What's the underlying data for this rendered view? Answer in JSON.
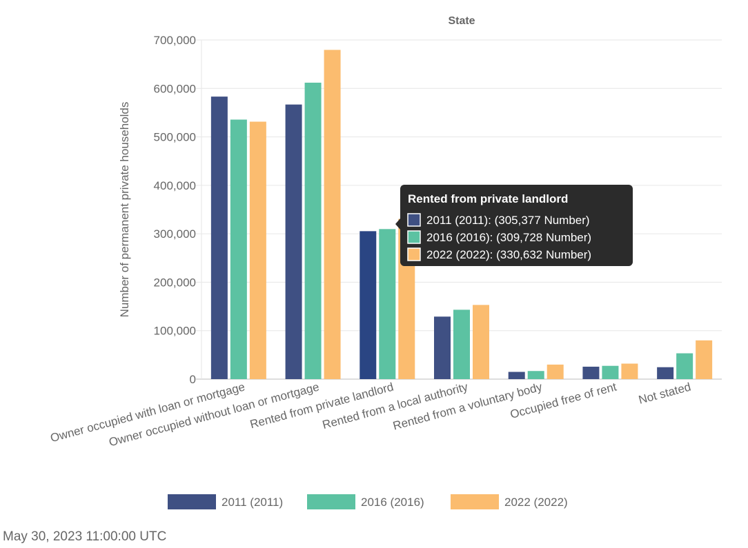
{
  "chart_data": {
    "type": "bar",
    "title": "State",
    "ylabel": "Number of permanent private households",
    "xlabel": "",
    "ylim": [
      0,
      700000
    ],
    "yticks": [
      0,
      100000,
      200000,
      300000,
      400000,
      500000,
      600000,
      700000
    ],
    "ytick_labels": [
      "0",
      "100,000",
      "200,000",
      "300,000",
      "400,000",
      "500,000",
      "600,000",
      "700,000"
    ],
    "grid": true,
    "legend_position": "bottom",
    "categories": [
      "Owner occupied with loan or mortgage",
      "Owner occupied without loan or mortgage",
      "Rented from private landlord",
      "Rented from a local authority",
      "Rented from a voluntary body",
      "Occupied free of rent",
      "Not stated"
    ],
    "series": [
      {
        "name": "2011 (2011)",
        "color": "#3f5083",
        "values": [
          583148,
          566776,
          305377,
          129033,
          14929,
          25669,
          24619
        ]
      },
      {
        "name": "2016 (2016)",
        "color": "#5cc2a2",
        "values": [
          535675,
          611877,
          309728,
          143178,
          16733,
          27428,
          53296
        ]
      },
      {
        "name": "2022 (2022)",
        "color": "#fbbc6f",
        "values": [
          531402,
          679553,
          330632,
          153106,
          30000,
          32000,
          80000
        ]
      }
    ],
    "tooltip": {
      "title": "Rented from private landlord",
      "category_index": 2,
      "lines": [
        "2011 (2011): (305,377 Number)",
        "2016 (2016): (309,728 Number)",
        "2022 (2022): (330,632 Number)"
      ],
      "background": "#2b2b2b"
    }
  },
  "footer": {
    "timestamp": "May 30, 2023 11:00:00 UTC"
  }
}
